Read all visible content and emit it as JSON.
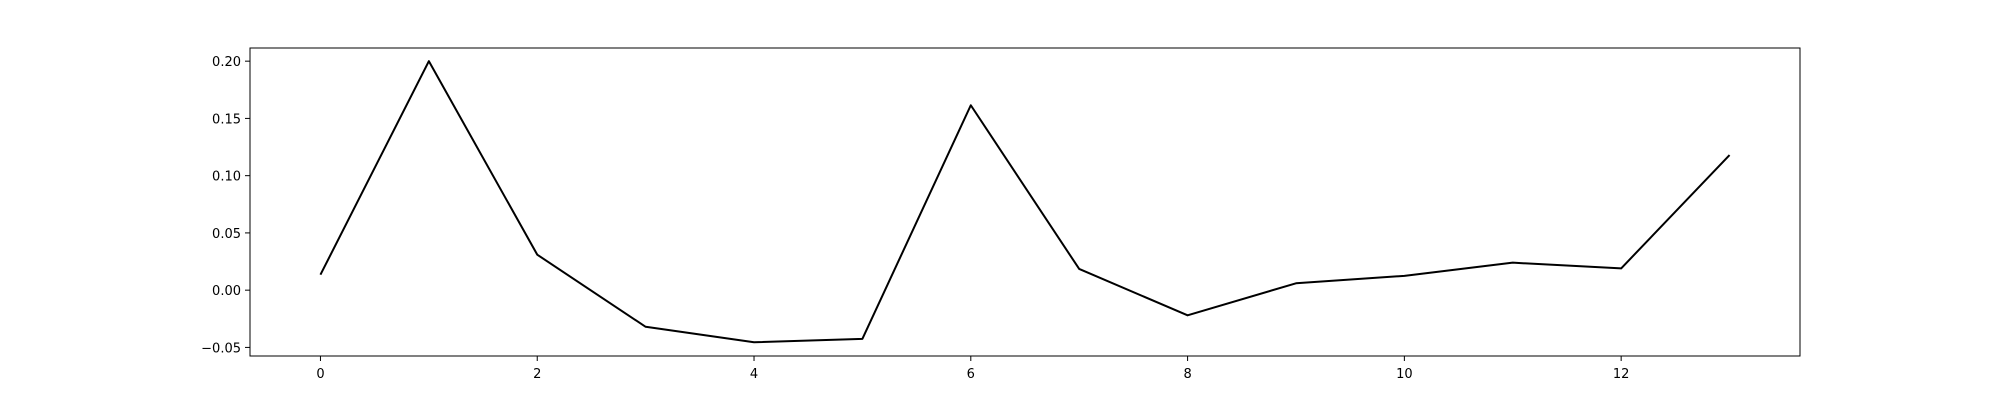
{
  "chart_data": {
    "type": "line",
    "title": "",
    "xlabel": "",
    "ylabel": "",
    "x": [
      0,
      1,
      2,
      3,
      4,
      5,
      6,
      7,
      8,
      9,
      10,
      11,
      12,
      13
    ],
    "series": [
      {
        "values": [
          0.0135,
          0.2,
          0.031,
          -0.032,
          -0.0455,
          -0.0425,
          0.1615,
          0.0185,
          -0.022,
          0.006,
          0.0125,
          0.024,
          0.019,
          0.118
        ],
        "color": "#000000"
      }
    ],
    "xlim": [
      -0.65,
      13.65
    ],
    "ylim": [
      -0.0575,
      0.2115
    ],
    "xticks": [
      0,
      2,
      4,
      6,
      8,
      10,
      12
    ],
    "xtick_labels": [
      "0",
      "2",
      "4",
      "6",
      "8",
      "10",
      "12"
    ],
    "yticks": [
      -0.05,
      0.0,
      0.05,
      0.1,
      0.15,
      0.2
    ],
    "ytick_labels": [
      "−0.05",
      "0.00",
      "0.05",
      "0.10",
      "0.15",
      "0.20"
    ],
    "grid": false,
    "legend": "none"
  }
}
